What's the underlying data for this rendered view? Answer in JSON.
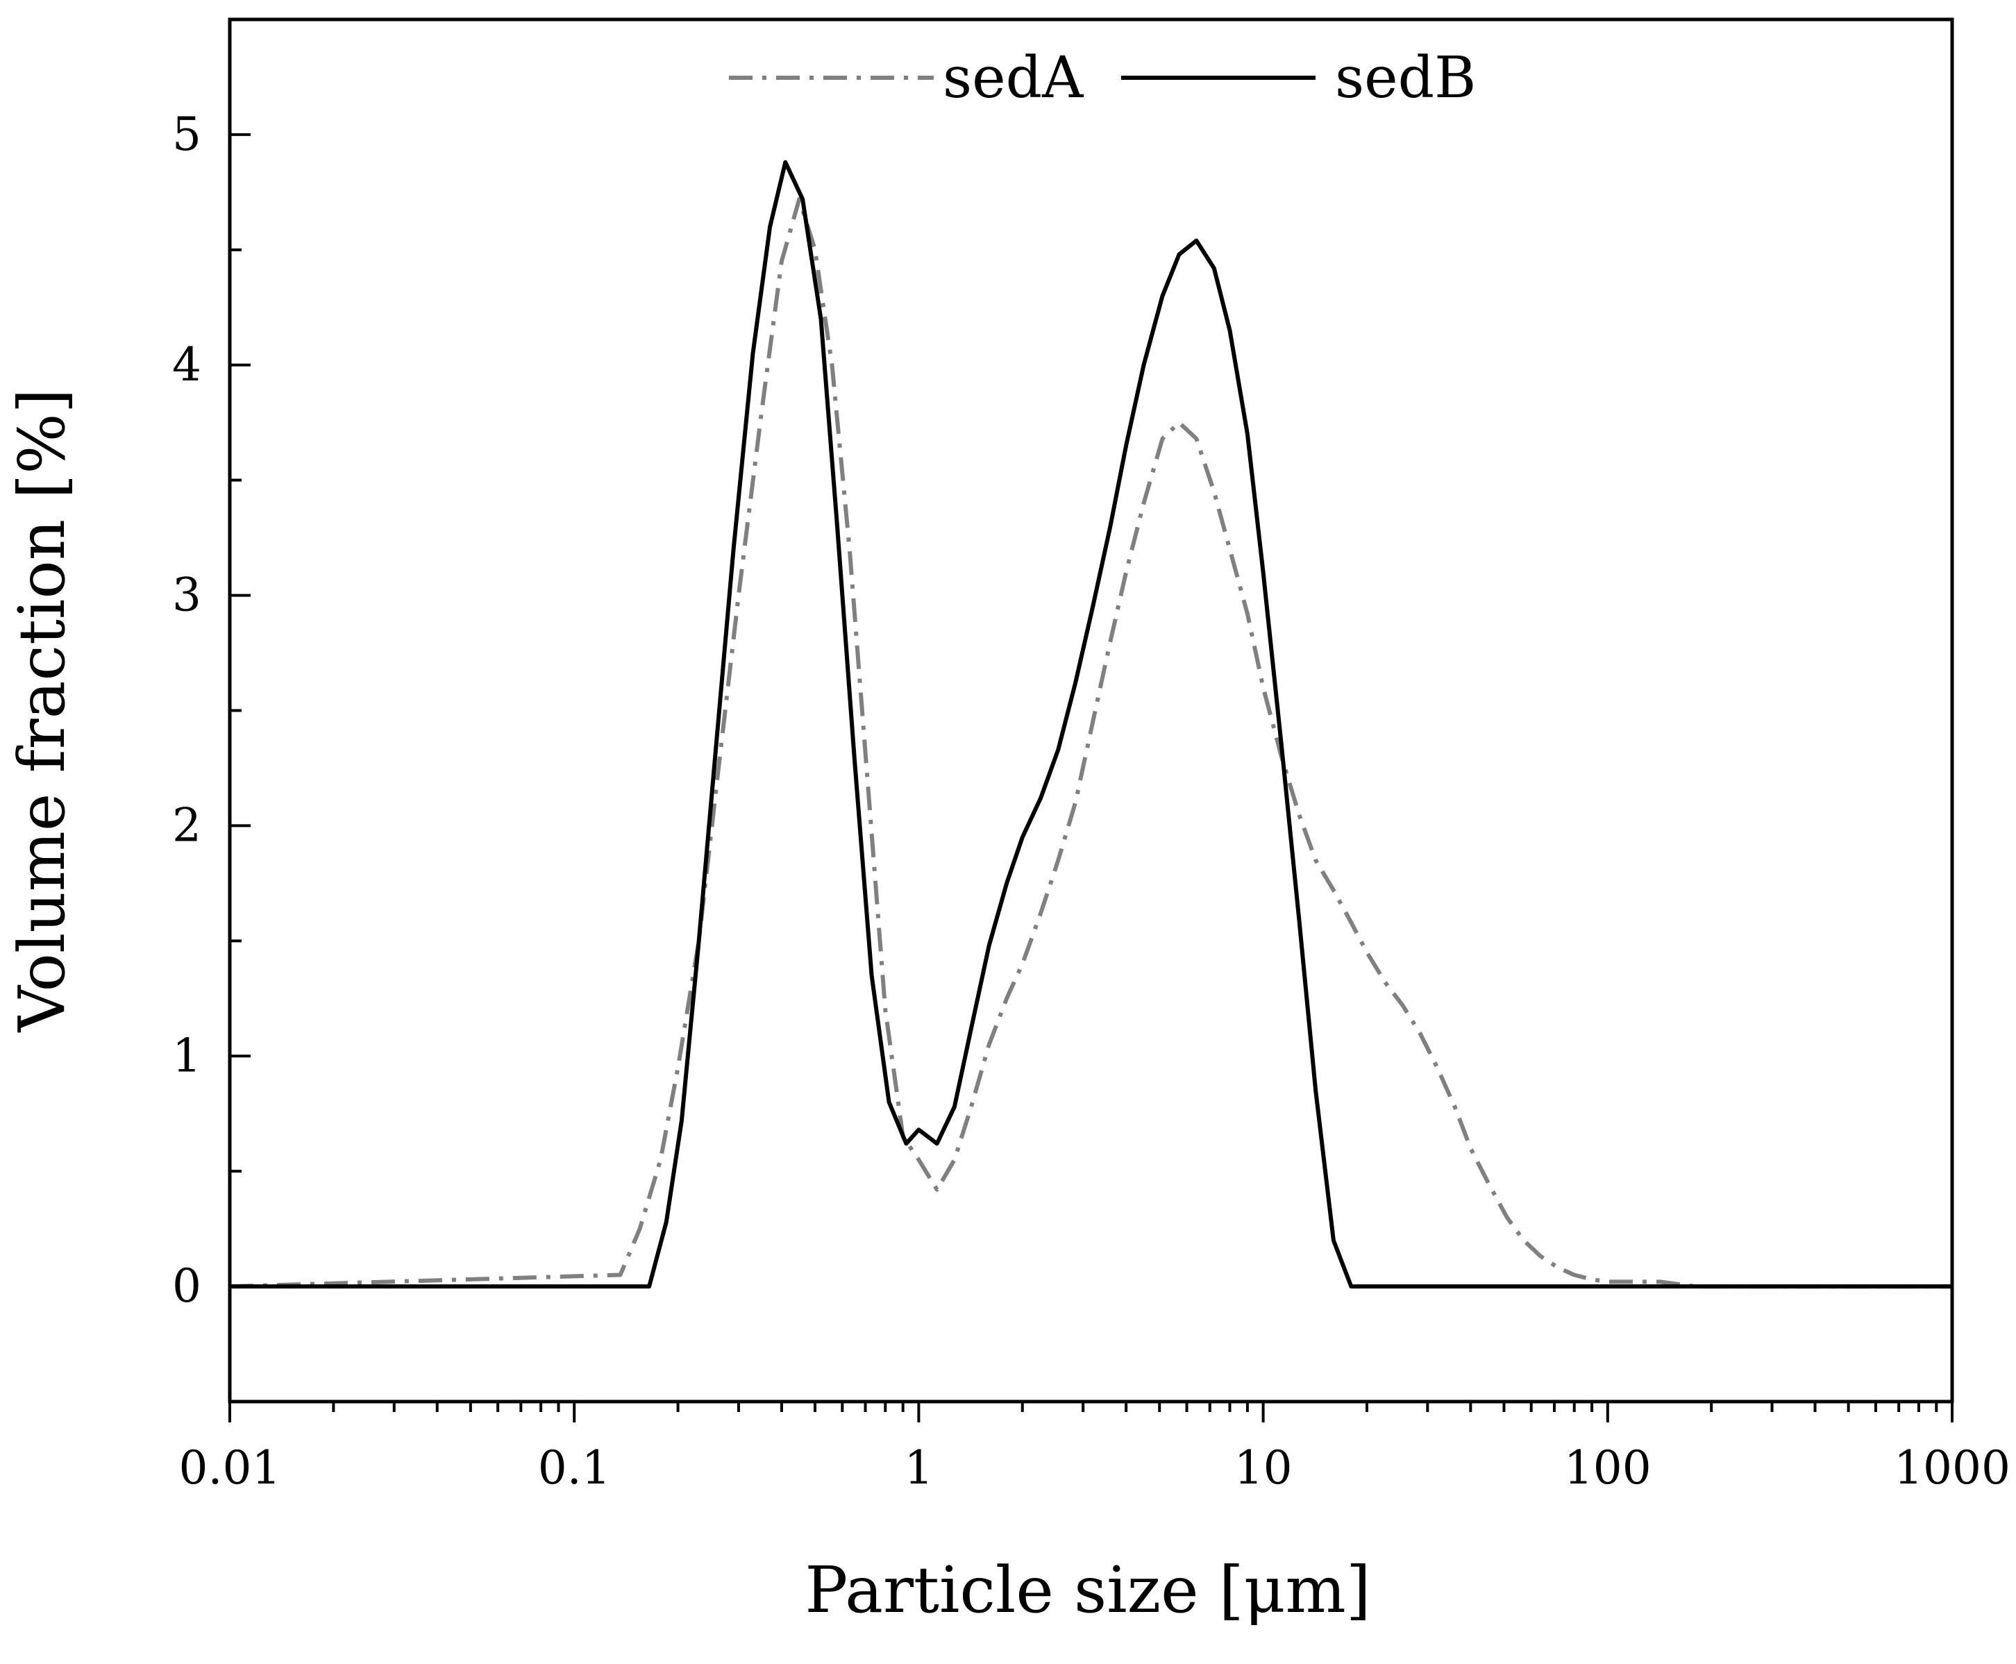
{
  "chart_data": {
    "type": "line",
    "xlabel": "Particle size [μm]",
    "ylabel": "Volume fraction [%]",
    "xscale": "log",
    "xlim": [
      0.01,
      1000
    ],
    "ylim": [
      -0.5,
      5.5
    ],
    "x_ticks": [
      0.01,
      0.1,
      1,
      10,
      100,
      1000
    ],
    "x_tick_labels": [
      "0.01",
      "0.1",
      "1",
      "10",
      "100",
      "1000"
    ],
    "y_ticks": [
      0,
      1,
      2,
      3,
      4,
      5
    ],
    "y_tick_labels": [
      "0",
      "1",
      "2",
      "3",
      "4",
      "5"
    ],
    "grid": false,
    "legend_position": "top-center",
    "series": [
      {
        "name": "sedA",
        "style": "dash-dot",
        "color": "#808080",
        "x": [
          0.01,
          0.136,
          0.155,
          0.178,
          0.2,
          0.23,
          0.26,
          0.3,
          0.35,
          0.4,
          0.45,
          0.5,
          0.56,
          0.63,
          0.71,
          0.8,
          0.9,
          1.0,
          1.13,
          1.27,
          1.42,
          1.6,
          1.8,
          2.0,
          2.26,
          2.54,
          2.85,
          3.2,
          3.6,
          4.0,
          4.5,
          5.1,
          5.7,
          6.4,
          7.2,
          8.0,
          9.0,
          10.0,
          11.3,
          12.7,
          14.2,
          16.0,
          18.0,
          20.0,
          22.6,
          25.4,
          28.5,
          32,
          36,
          40,
          45,
          51,
          57,
          64,
          72,
          80,
          90,
          100,
          113,
          127,
          142,
          160,
          180,
          200,
          1000
        ],
        "y": [
          0,
          0.05,
          0.25,
          0.55,
          0.95,
          1.5,
          2.2,
          3.0,
          3.8,
          4.45,
          4.72,
          4.5,
          4.0,
          3.2,
          2.2,
          1.2,
          0.65,
          0.55,
          0.42,
          0.55,
          0.78,
          1.05,
          1.25,
          1.4,
          1.62,
          1.85,
          2.1,
          2.45,
          2.8,
          3.1,
          3.4,
          3.68,
          3.75,
          3.68,
          3.45,
          3.2,
          2.92,
          2.6,
          2.3,
          2.05,
          1.85,
          1.72,
          1.58,
          1.45,
          1.32,
          1.22,
          1.1,
          0.95,
          0.78,
          0.6,
          0.45,
          0.3,
          0.2,
          0.13,
          0.08,
          0.05,
          0.03,
          0.02,
          0.02,
          0.02,
          0.02,
          0.01,
          0.0,
          0.0,
          0.0
        ]
      },
      {
        "name": "sedB",
        "style": "solid",
        "color": "#000000",
        "x": [
          0.01,
          0.165,
          0.185,
          0.205,
          0.23,
          0.26,
          0.29,
          0.33,
          0.37,
          0.41,
          0.46,
          0.52,
          0.58,
          0.65,
          0.73,
          0.82,
          0.92,
          1.0,
          1.13,
          1.27,
          1.42,
          1.6,
          1.8,
          2.0,
          2.26,
          2.54,
          2.85,
          3.2,
          3.6,
          4.0,
          4.5,
          5.1,
          5.7,
          6.4,
          7.2,
          8.0,
          9.0,
          10.0,
          11.3,
          12.7,
          14.2,
          16.0,
          18.0,
          20.0,
          22.6,
          25.4,
          28.5,
          1000
        ],
        "y": [
          0,
          0.0,
          0.28,
          0.72,
          1.5,
          2.4,
          3.2,
          4.05,
          4.6,
          4.88,
          4.72,
          4.2,
          3.3,
          2.3,
          1.35,
          0.8,
          0.62,
          0.68,
          0.62,
          0.78,
          1.12,
          1.48,
          1.75,
          1.95,
          2.12,
          2.33,
          2.62,
          2.95,
          3.3,
          3.65,
          4.0,
          4.3,
          4.48,
          4.54,
          4.42,
          4.15,
          3.7,
          3.1,
          2.35,
          1.6,
          0.85,
          0.2,
          0.0,
          0.0,
          0.0,
          0.0,
          0.0,
          0.0
        ]
      }
    ]
  }
}
